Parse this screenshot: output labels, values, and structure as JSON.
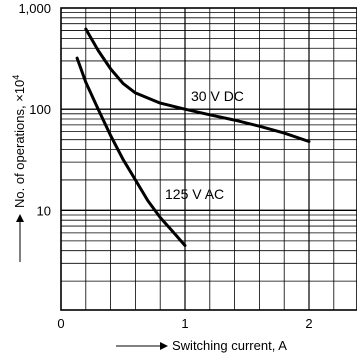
{
  "chart_data": {
    "type": "line",
    "title": "",
    "xlabel": "Switching current, A",
    "ylabel": "No. of operations, ×10",
    "ylabel_exponent": "4",
    "xscale": "linear",
    "yscale": "log",
    "xlim": [
      0,
      2.4
    ],
    "ylim": [
      1,
      1000
    ],
    "x_ticks": [
      "0",
      "1",
      "2"
    ],
    "y_ticks": [
      "1,000",
      "100",
      "10"
    ],
    "grid": true,
    "series": [
      {
        "name": "30 V DC",
        "points": [
          [
            0.2,
            620
          ],
          [
            0.3,
            380
          ],
          [
            0.4,
            250
          ],
          [
            0.5,
            180
          ],
          [
            0.6,
            145
          ],
          [
            0.8,
            115
          ],
          [
            1.0,
            100
          ],
          [
            1.2,
            88
          ],
          [
            1.4,
            78
          ],
          [
            1.6,
            68
          ],
          [
            1.8,
            58
          ],
          [
            2.0,
            48
          ]
        ]
      },
      {
        "name": "125 V AC",
        "points": [
          [
            0.13,
            320
          ],
          [
            0.2,
            185
          ],
          [
            0.3,
            100
          ],
          [
            0.4,
            55
          ],
          [
            0.5,
            32
          ],
          [
            0.6,
            20
          ],
          [
            0.7,
            12.5
          ],
          [
            0.8,
            8.5
          ],
          [
            0.9,
            6.2
          ],
          [
            1.0,
            4.5
          ]
        ]
      }
    ],
    "annotations": [
      "30 V DC",
      "125 V AC"
    ]
  }
}
